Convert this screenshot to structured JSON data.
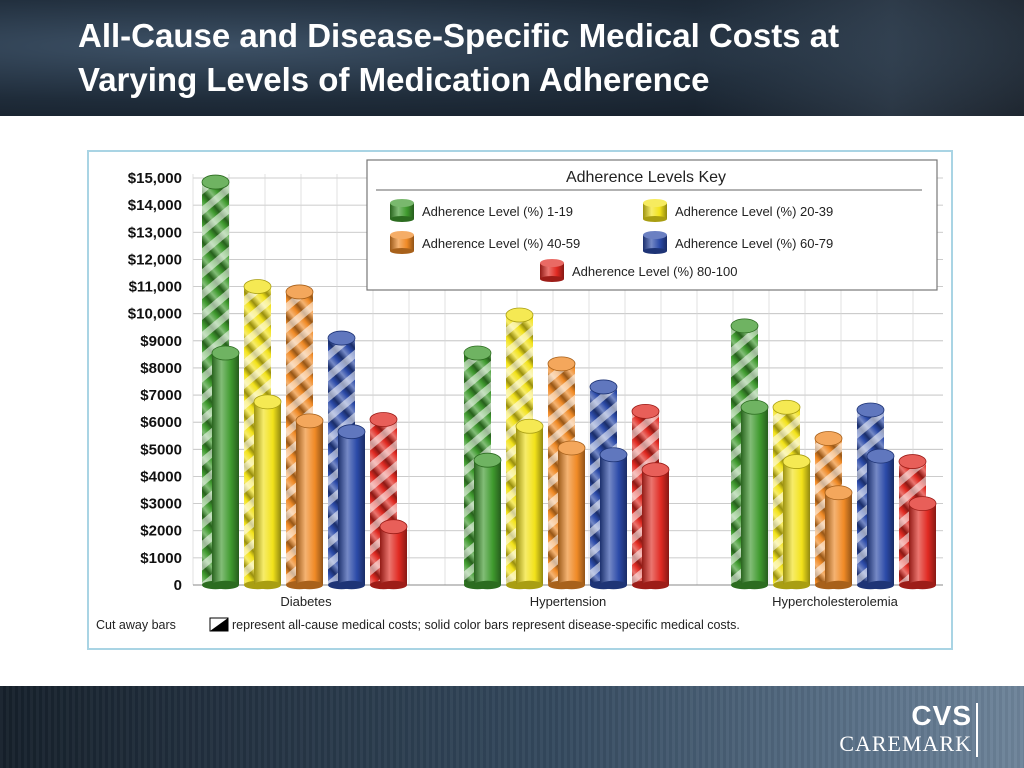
{
  "slide": {
    "title_line1": "All-Cause and Disease-Specific Medical Costs at",
    "title_line2": "Varying Levels of Medication Adherence"
  },
  "logo": {
    "brand_top": "CVS",
    "brand_bottom": "CAREMARK"
  },
  "colors": {
    "green": "#3f9a2e",
    "yellow": "#f2e21a",
    "orange": "#f08a26",
    "blue": "#2b4aa8",
    "red": "#e02a22",
    "grid": "#bbbbbb",
    "frame": "#a9d4e4"
  },
  "chart_data": {
    "type": "bar",
    "title": "",
    "xlabel": "",
    "ylabel": "",
    "ylim": [
      0,
      15000
    ],
    "y_ticks": [
      0,
      1000,
      2000,
      3000,
      4000,
      5000,
      6000,
      7000,
      8000,
      9000,
      10000,
      11000,
      12000,
      13000,
      14000,
      15000
    ],
    "y_tick_labels": [
      "0",
      "$1000",
      "$2000",
      "$3000",
      "$4000",
      "$5000",
      "$6000",
      "$7000",
      "$8000",
      "$9000",
      "$10,000",
      "$11,000",
      "$12,000",
      "$13,000",
      "$14,000",
      "$15,000"
    ],
    "categories": [
      "Diabetes",
      "Hypertension",
      "Hypercholesterolemia"
    ],
    "grid": true,
    "legend_title": "Adherence Levels Key",
    "legend_position": "top-right",
    "series": [
      {
        "name": "Adherence Level (%) 1-19",
        "color": "green",
        "all_cause": [
          14850,
          8550,
          9550
        ],
        "disease_specific": [
          8550,
          4600,
          6550
        ]
      },
      {
        "name": "Adherence Level (%) 20-39",
        "color": "yellow",
        "all_cause": [
          11000,
          9950,
          6550
        ],
        "disease_specific": [
          6750,
          5850,
          4550
        ]
      },
      {
        "name": "Adherence Level (%) 40-59",
        "color": "orange",
        "all_cause": [
          10800,
          8150,
          5400
        ],
        "disease_specific": [
          6050,
          5050,
          3400
        ]
      },
      {
        "name": "Adherence Level (%) 60-79",
        "color": "blue",
        "all_cause": [
          9100,
          7300,
          6450
        ],
        "disease_specific": [
          5650,
          4800,
          4750
        ]
      },
      {
        "name": "Adherence Level (%) 80-100",
        "color": "red",
        "all_cause": [
          6100,
          6400,
          4550
        ],
        "disease_specific": [
          2150,
          4250,
          3000
        ]
      }
    ],
    "caption_before_icon": "Cut away bars",
    "caption_after_icon": "represent all-cause medical costs; solid color bars represent disease-specific medical costs."
  }
}
